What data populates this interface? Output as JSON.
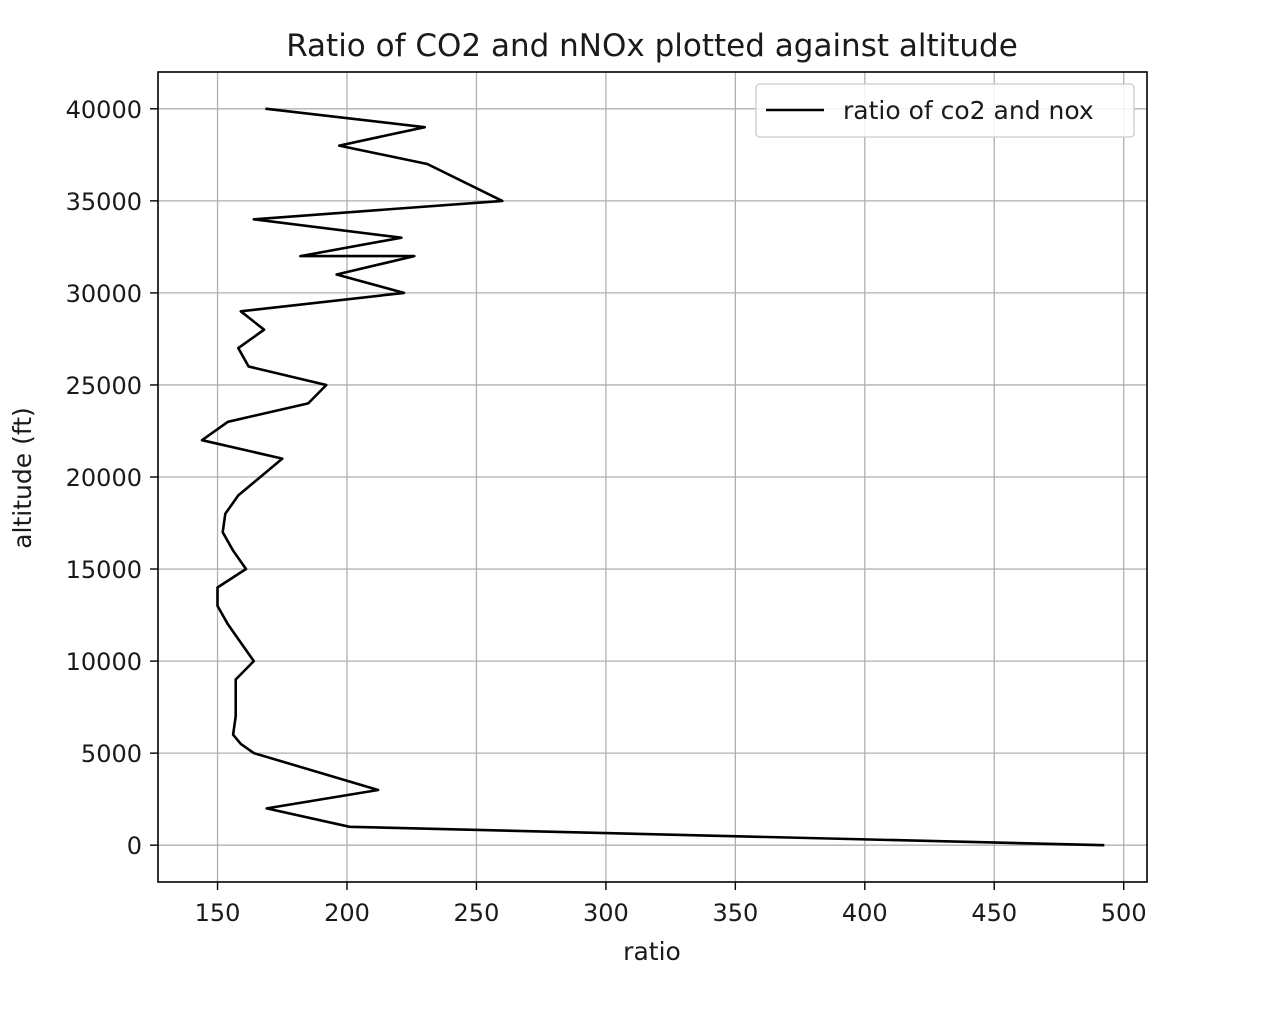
{
  "chart_data": {
    "type": "line",
    "title": "Ratio of CO2 and nNOx plotted against altitude",
    "xlabel": "ratio",
    "ylabel": "altitude (ft)",
    "xlim": [
      127,
      509
    ],
    "ylim": [
      -2000,
      42000
    ],
    "xticks": [
      150,
      200,
      250,
      300,
      350,
      400,
      450,
      500
    ],
    "yticks": [
      0,
      5000,
      10000,
      15000,
      20000,
      25000,
      30000,
      35000,
      40000
    ],
    "xtick_labels": [
      "150",
      "200",
      "250",
      "300",
      "350",
      "400",
      "450",
      "500"
    ],
    "ytick_labels": [
      "0",
      "5000",
      "10000",
      "15000",
      "20000",
      "25000",
      "30000",
      "35000",
      "40000"
    ],
    "grid": true,
    "legend_position": "top-right",
    "colors": {
      "line": "#000000",
      "grid": "#b0b0b0",
      "axes": "#000000"
    },
    "series": [
      {
        "name": "ratio of co2 and nox",
        "x": [
          492,
          201,
          169,
          212,
          164,
          159,
          156,
          157,
          157,
          164,
          154,
          150,
          150,
          161,
          156,
          152,
          153,
          158,
          175,
          144,
          154,
          185,
          192,
          162,
          158,
          168,
          159,
          222,
          196,
          226,
          182,
          221,
          164,
          260,
          231,
          197,
          230,
          169
        ],
        "y": [
          0,
          1000,
          2000,
          3000,
          5000,
          5500,
          6000,
          7000,
          9000,
          10000,
          12000,
          13000,
          14000,
          15000,
          16000,
          17000,
          18000,
          19000,
          21000,
          22000,
          23000,
          24000,
          25000,
          26000,
          27000,
          28000,
          29000,
          30000,
          31000,
          32000,
          32000,
          33000,
          34000,
          35000,
          37000,
          38000,
          39000,
          40000
        ]
      }
    ]
  }
}
